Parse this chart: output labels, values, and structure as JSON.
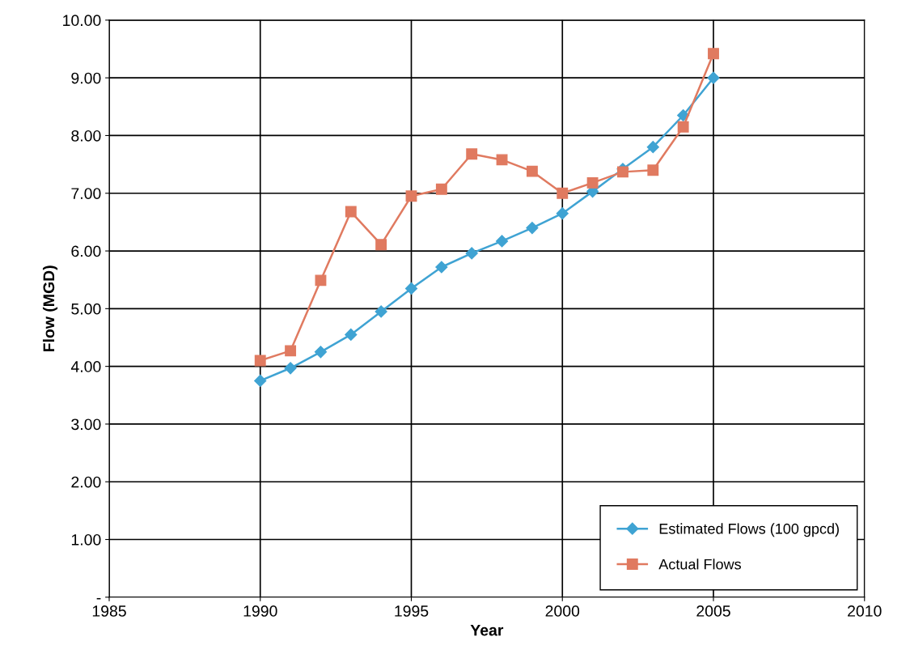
{
  "chart_data": {
    "type": "line",
    "xlabel": "Year",
    "ylabel": "Flow (MGD)",
    "x": [
      1990,
      1991,
      1992,
      1993,
      1994,
      1995,
      1996,
      1997,
      1998,
      1999,
      2000,
      2001,
      2002,
      2003,
      2004,
      2005
    ],
    "series": [
      {
        "name": "Estimated Flows (100 gpcd)",
        "color": "#3fa3d3",
        "marker": "diamond",
        "values": [
          3.75,
          3.97,
          4.25,
          4.55,
          4.95,
          5.35,
          5.72,
          5.96,
          6.17,
          6.4,
          6.65,
          7.03,
          7.42,
          7.8,
          8.35,
          9.0
        ]
      },
      {
        "name": "Actual Flows",
        "color": "#e07a60",
        "marker": "square",
        "values": [
          4.1,
          4.27,
          5.49,
          6.68,
          6.11,
          6.95,
          7.07,
          7.68,
          7.58,
          7.38,
          7.0,
          7.18,
          7.37,
          7.4,
          8.15,
          9.42
        ]
      }
    ],
    "xlim": [
      1985,
      2010
    ],
    "xticks": [
      1985,
      1990,
      1995,
      2000,
      2005,
      2010
    ],
    "ylim": [
      0,
      10
    ],
    "yticks": [
      {
        "value": 0,
        "label": "-"
      },
      {
        "value": 1,
        "label": "1.00"
      },
      {
        "value": 2,
        "label": "2.00"
      },
      {
        "value": 3,
        "label": "3.00"
      },
      {
        "value": 4,
        "label": "4.00"
      },
      {
        "value": 5,
        "label": "5.00"
      },
      {
        "value": 6,
        "label": "6.00"
      },
      {
        "value": 7,
        "label": "7.00"
      },
      {
        "value": 8,
        "label": "8.00"
      },
      {
        "value": 9,
        "label": "9.00"
      },
      {
        "value": 10,
        "label": "10.00"
      }
    ],
    "grid": true,
    "legend": "bottom right",
    "line_style": "solid"
  }
}
